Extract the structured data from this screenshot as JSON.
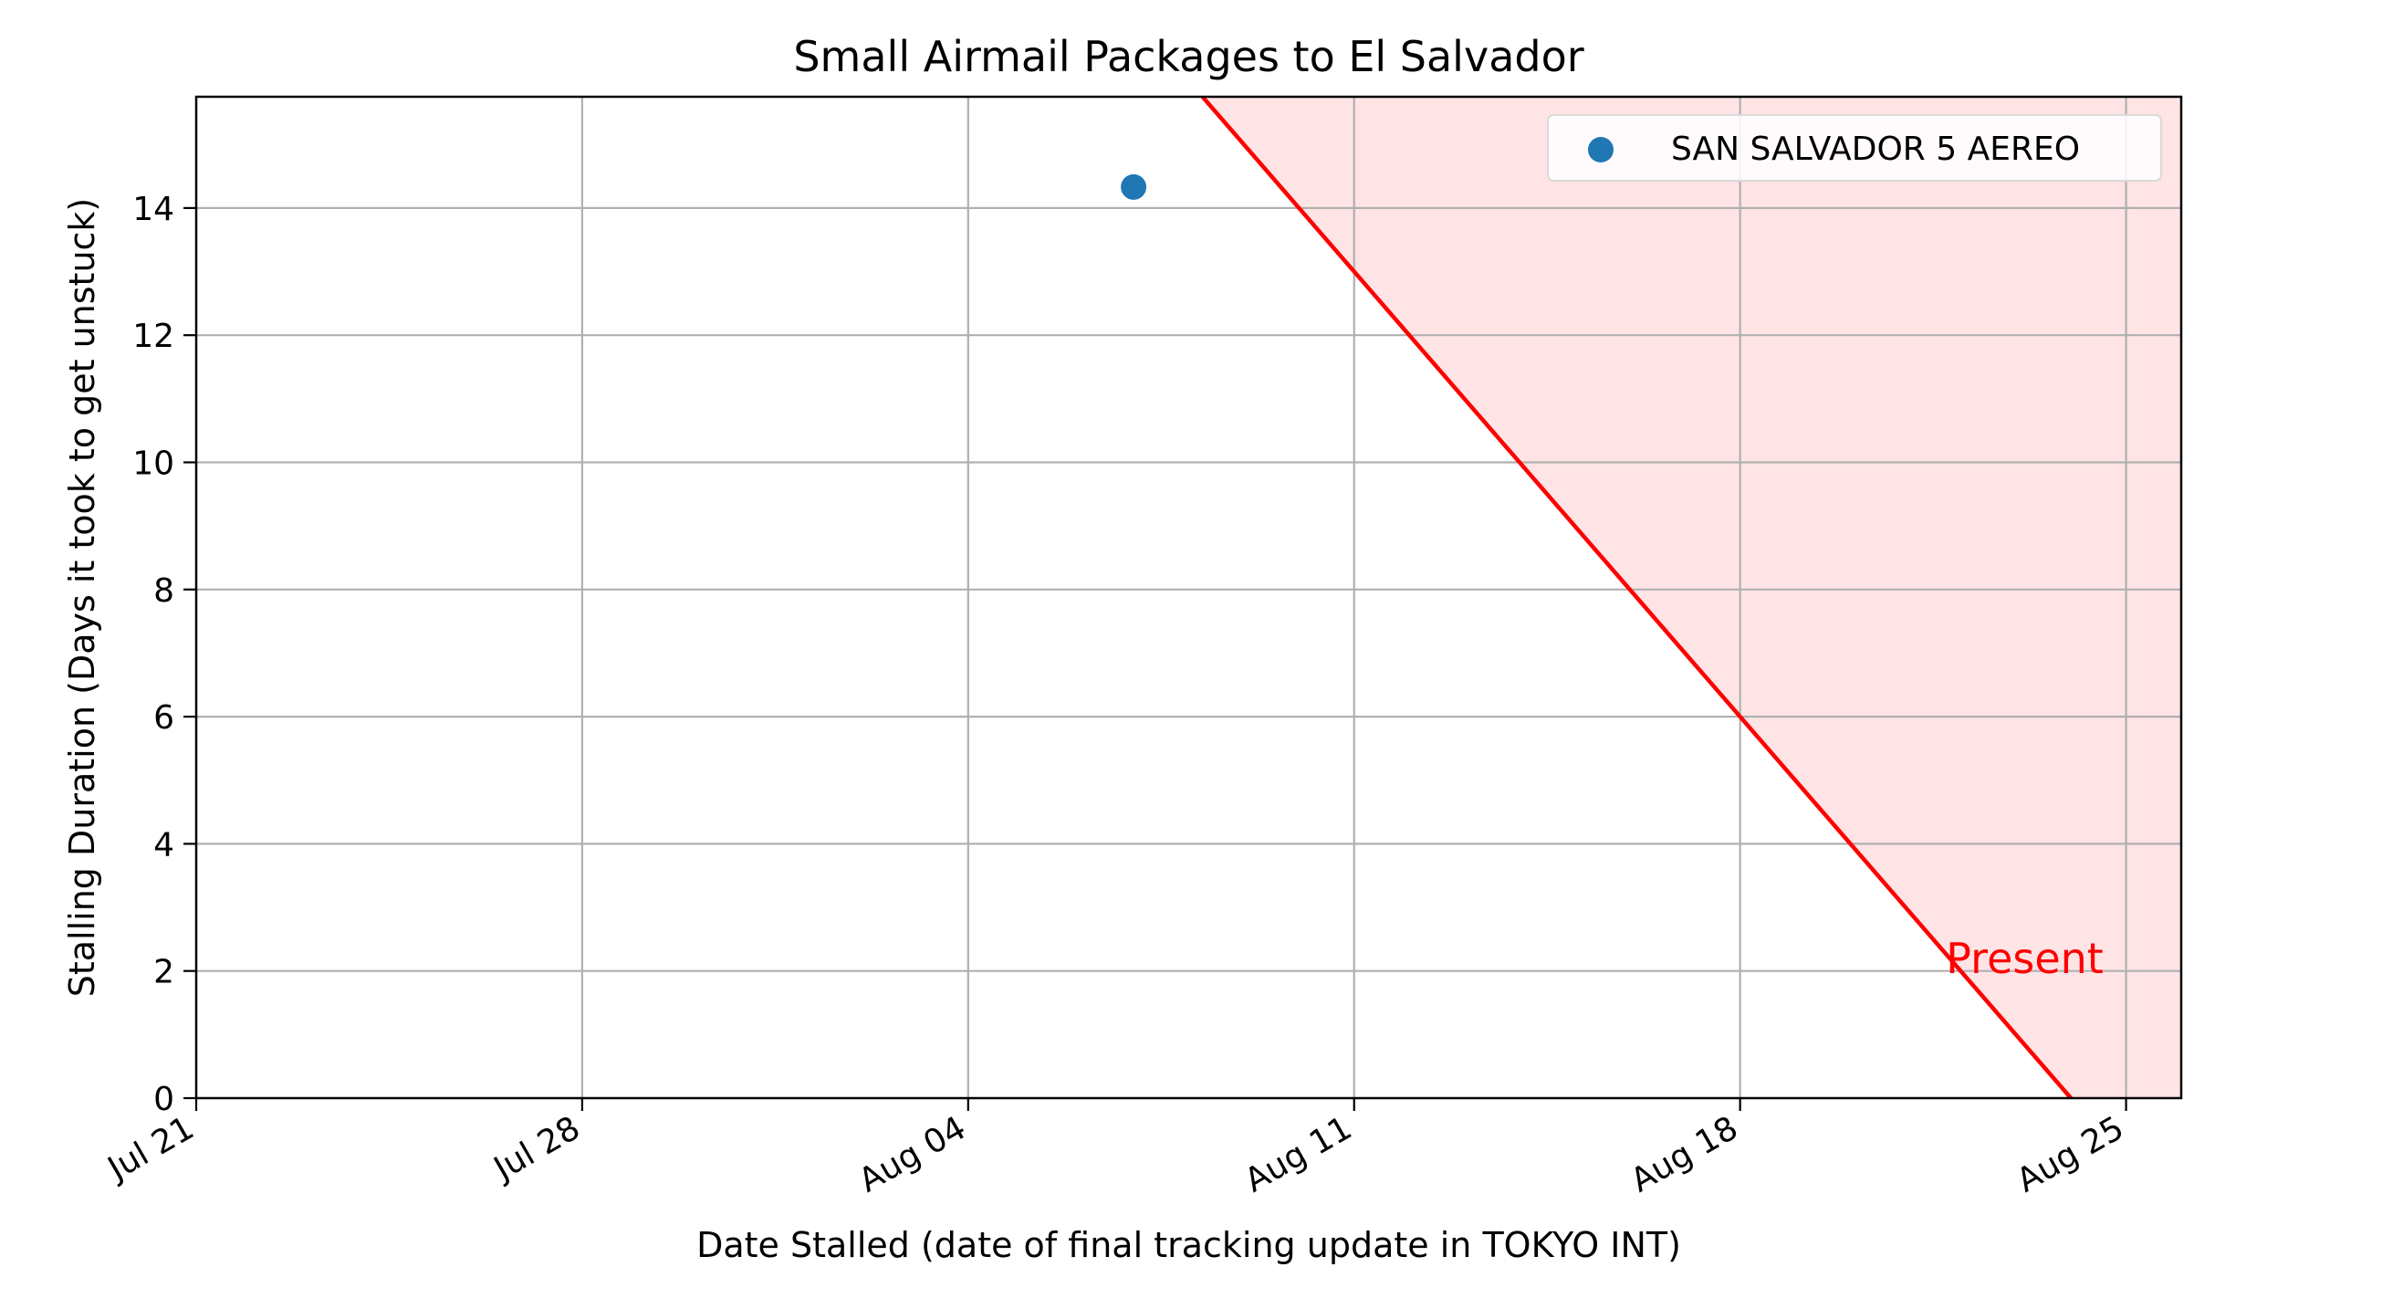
{
  "chart_data": {
    "type": "scatter",
    "title": "Small Airmail Packages to El Salvador",
    "xlabel": "Date Stalled (date of final tracking update in TOKYO INT)",
    "ylabel": "Stalling Duration (Days it took to get unstuck)",
    "x_axis_type": "date",
    "xlim": [
      "2024-07-21",
      "2024-08-26"
    ],
    "ylim": [
      0,
      15.75
    ],
    "x_ticks": [
      {
        "date": "2024-07-21",
        "label": "Jul 21"
      },
      {
        "date": "2024-07-28",
        "label": "Jul 28"
      },
      {
        "date": "2024-08-04",
        "label": "Aug 04"
      },
      {
        "date": "2024-08-11",
        "label": "Aug 11"
      },
      {
        "date": "2024-08-18",
        "label": "Aug 18"
      },
      {
        "date": "2024-08-25",
        "label": "Aug 25"
      }
    ],
    "y_ticks": [
      0,
      2,
      4,
      6,
      8,
      10,
      12,
      14
    ],
    "grid": true,
    "legend_position": "top-right",
    "series": [
      {
        "name": "SAN SALVADOR 5 AEREO",
        "color": "#1f77b4",
        "points": [
          {
            "x": "2024-08-07",
            "y": 14.33
          }
        ]
      }
    ],
    "present_line": {
      "label": "Present",
      "color": "#ff0000",
      "fill_color": "#ffe4e6",
      "zero_date": "2024-08-24"
    }
  }
}
